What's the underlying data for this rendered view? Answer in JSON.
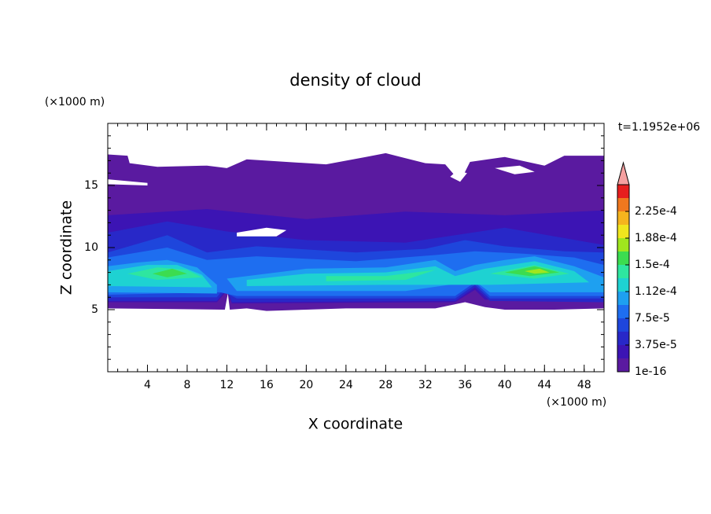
{
  "chart_data": {
    "type": "contour",
    "title": "density of cloud",
    "x_label": "X coordinate",
    "y_label": "Z coordinate",
    "x_unit": "(×1000 m)",
    "y_unit": "(×1000 m)",
    "time_label": "t=1.1952e+06",
    "xlim": [
      0,
      50
    ],
    "ylim": [
      0,
      20
    ],
    "xticks": [
      4,
      8,
      12,
      16,
      20,
      24,
      28,
      32,
      36,
      40,
      44,
      48
    ],
    "yticks": [
      5,
      10,
      15
    ],
    "colorbar": {
      "levels": [
        1e-16,
        1.875e-05,
        3.75e-05,
        5.625e-05,
        7.5e-05,
        9.375e-05,
        0.0001125,
        0.00013125,
        0.00015,
        0.00016875,
        0.0001875,
        0.00020625,
        0.000225,
        0.00024375
      ],
      "colors": [
        "#5a1aa0",
        "#3c14b4",
        "#2828c8",
        "#1e46dc",
        "#1e6ef0",
        "#1ea0f0",
        "#1ed2d2",
        "#2ee6a0",
        "#3cdc50",
        "#a0e61e",
        "#f0e61e",
        "#f5b41e",
        "#f0781e",
        "#e61e1e"
      ],
      "extend_color": "#f5a0a0",
      "ticks": [
        1e-16,
        {
          "value": 3.75e-05,
          "label": "3.75e-5"
        },
        {
          "value": 7.5e-05,
          "label": "7.5e-5"
        },
        {
          "value": 0.0001125,
          "label": "1.12e-4"
        },
        {
          "value": 0.00015,
          "label": "1.5e-4"
        },
        {
          "value": 0.0001875,
          "label": "1.88e-4"
        },
        {
          "value": 0.000225,
          "label": "2.25e-4"
        }
      ]
    }
  }
}
